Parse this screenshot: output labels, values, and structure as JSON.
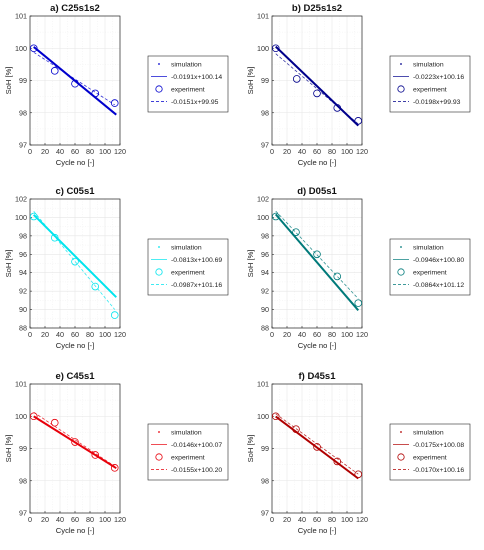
{
  "figure": {
    "type": "line"
  },
  "chart_data": [
    {
      "type": "line",
      "title": "a) C25s1s2",
      "xlabel": "Cycle no [-]",
      "ylabel": "SoH [%]",
      "xlim": [
        0,
        120
      ],
      "ylim": [
        97,
        101
      ],
      "xticks": [
        "0",
        "20",
        "40",
        "60",
        "80",
        "100",
        "120"
      ],
      "yticks": [
        "97",
        "98",
        "99",
        "100",
        "101"
      ],
      "grid": true,
      "legend_position": "outside-right",
      "color": "#0000cd",
      "legend": [
        "simulation",
        "-0.0191x+100.14",
        "experiment",
        "-0.0151x+99.95"
      ],
      "simulation": {
        "x": [
          5,
          115
        ],
        "y": [
          100.04,
          97.94
        ]
      },
      "sim_fit": {
        "slope": -0.0191,
        "intercept": 100.14
      },
      "experiment": {
        "x": [
          5,
          33,
          60,
          87,
          113
        ],
        "y": [
          100.0,
          99.3,
          98.9,
          98.6,
          98.3
        ]
      },
      "exp_fit": {
        "slope": -0.0151,
        "intercept": 99.95
      }
    },
    {
      "type": "line",
      "title": "b) D25s1s2",
      "xlabel": "Cycle no [-]",
      "ylabel": "SoH [%]",
      "xlim": [
        0,
        120
      ],
      "ylim": [
        97,
        101
      ],
      "xticks": [
        "0",
        "20",
        "40",
        "60",
        "80",
        "100",
        "120"
      ],
      "yticks": [
        "97",
        "98",
        "99",
        "100",
        "101"
      ],
      "grid": true,
      "legend_position": "outside-right",
      "color": "#00008b",
      "legend": [
        "simulation",
        "-0.0223x+100.16",
        "experiment",
        "-0.0198x+99.93"
      ],
      "simulation": {
        "x": [
          5,
          115
        ],
        "y": [
          100.05,
          97.6
        ]
      },
      "sim_fit": {
        "slope": -0.0223,
        "intercept": 100.16
      },
      "experiment": {
        "x": [
          5,
          33,
          60,
          87,
          115
        ],
        "y": [
          100.0,
          99.05,
          98.6,
          98.15,
          97.75
        ]
      },
      "exp_fit": {
        "slope": -0.0198,
        "intercept": 99.93
      }
    },
    {
      "type": "line",
      "title": "c) C05s1",
      "xlabel": "Cycle no [-]",
      "ylabel": "SoH [%]",
      "xlim": [
        0,
        120
      ],
      "ylim": [
        88,
        102
      ],
      "xticks": [
        "0",
        "20",
        "40",
        "60",
        "80",
        "100",
        "120"
      ],
      "yticks": [
        "88",
        "90",
        "92",
        "94",
        "96",
        "98",
        "100",
        "102"
      ],
      "grid": true,
      "legend_position": "outside-right",
      "color": "#00e5ee",
      "legend": [
        "simulation",
        "-0.0813x+100.69",
        "experiment",
        "-0.0987x+101.16"
      ],
      "simulation": {
        "x": [
          5,
          115
        ],
        "y": [
          100.28,
          91.34
        ]
      },
      "sim_fit": {
        "slope": -0.0813,
        "intercept": 100.69
      },
      "experiment": {
        "x": [
          5,
          33,
          60,
          87,
          113
        ],
        "y": [
          100.1,
          97.8,
          95.2,
          92.5,
          89.4
        ]
      },
      "exp_fit": {
        "slope": -0.0987,
        "intercept": 101.16
      }
    },
    {
      "type": "line",
      "title": "d) D05s1",
      "xlabel": "Cycle no [-]",
      "ylabel": "SoH [%]",
      "xlim": [
        0,
        120
      ],
      "ylim": [
        88,
        102
      ],
      "xticks": [
        "0",
        "20",
        "40",
        "60",
        "80",
        "100",
        "120"
      ],
      "yticks": [
        "88",
        "90",
        "92",
        "94",
        "96",
        "98",
        "100",
        "102"
      ],
      "grid": true,
      "legend_position": "outside-right",
      "color": "#007a7a",
      "legend": [
        "simulation",
        "-0.0946x+100.80",
        "experiment",
        "-0.0864x+101.12"
      ],
      "simulation": {
        "x": [
          5,
          115
        ],
        "y": [
          100.33,
          89.92
        ]
      },
      "sim_fit": {
        "slope": -0.0946,
        "intercept": 100.8
      },
      "experiment": {
        "x": [
          5,
          32,
          60,
          87,
          115
        ],
        "y": [
          100.1,
          98.4,
          96.0,
          93.6,
          90.7
        ]
      },
      "exp_fit": {
        "slope": -0.0864,
        "intercept": 101.12
      }
    },
    {
      "type": "line",
      "title": "e) C45s1",
      "xlabel": "Cycle no [-]",
      "ylabel": "SoH [%]",
      "xlim": [
        0,
        120
      ],
      "ylim": [
        97,
        101
      ],
      "xticks": [
        "0",
        "20",
        "40",
        "60",
        "80",
        "100",
        "120"
      ],
      "yticks": [
        "97",
        "98",
        "99",
        "100",
        "101"
      ],
      "grid": true,
      "legend_position": "outside-right",
      "color": "#e8000b",
      "legend": [
        "simulation",
        "-0.0146x+100.07",
        "experiment",
        "-0.0155x+100.20"
      ],
      "simulation": {
        "x": [
          5,
          115
        ],
        "y": [
          99.997,
          98.39
        ]
      },
      "sim_fit": {
        "slope": -0.0146,
        "intercept": 100.07
      },
      "experiment": {
        "x": [
          5,
          33,
          60,
          87,
          113
        ],
        "y": [
          100.0,
          99.8,
          99.2,
          98.8,
          98.4
        ]
      },
      "exp_fit": {
        "slope": -0.0155,
        "intercept": 100.2
      }
    },
    {
      "type": "line",
      "title": "f) D45s1",
      "xlabel": "Cycle no [-]",
      "ylabel": "SoH [%]",
      "xlim": [
        0,
        120
      ],
      "ylim": [
        97,
        101
      ],
      "xticks": [
        "0",
        "20",
        "40",
        "60",
        "80",
        "100",
        "120"
      ],
      "yticks": [
        "97",
        "98",
        "99",
        "100",
        "101"
      ],
      "grid": true,
      "legend_position": "outside-right",
      "color": "#b00000",
      "legend": [
        "simulation",
        "-0.0175x+100.08",
        "experiment",
        "-0.0170x+100.16"
      ],
      "simulation": {
        "x": [
          5,
          115
        ],
        "y": [
          99.99,
          98.07
        ]
      },
      "sim_fit": {
        "slope": -0.0175,
        "intercept": 100.08
      },
      "experiment": {
        "x": [
          5,
          32,
          60,
          87,
          115
        ],
        "y": [
          100.0,
          99.6,
          99.05,
          98.6,
          98.2
        ]
      },
      "exp_fit": {
        "slope": -0.017,
        "intercept": 100.16
      }
    }
  ]
}
